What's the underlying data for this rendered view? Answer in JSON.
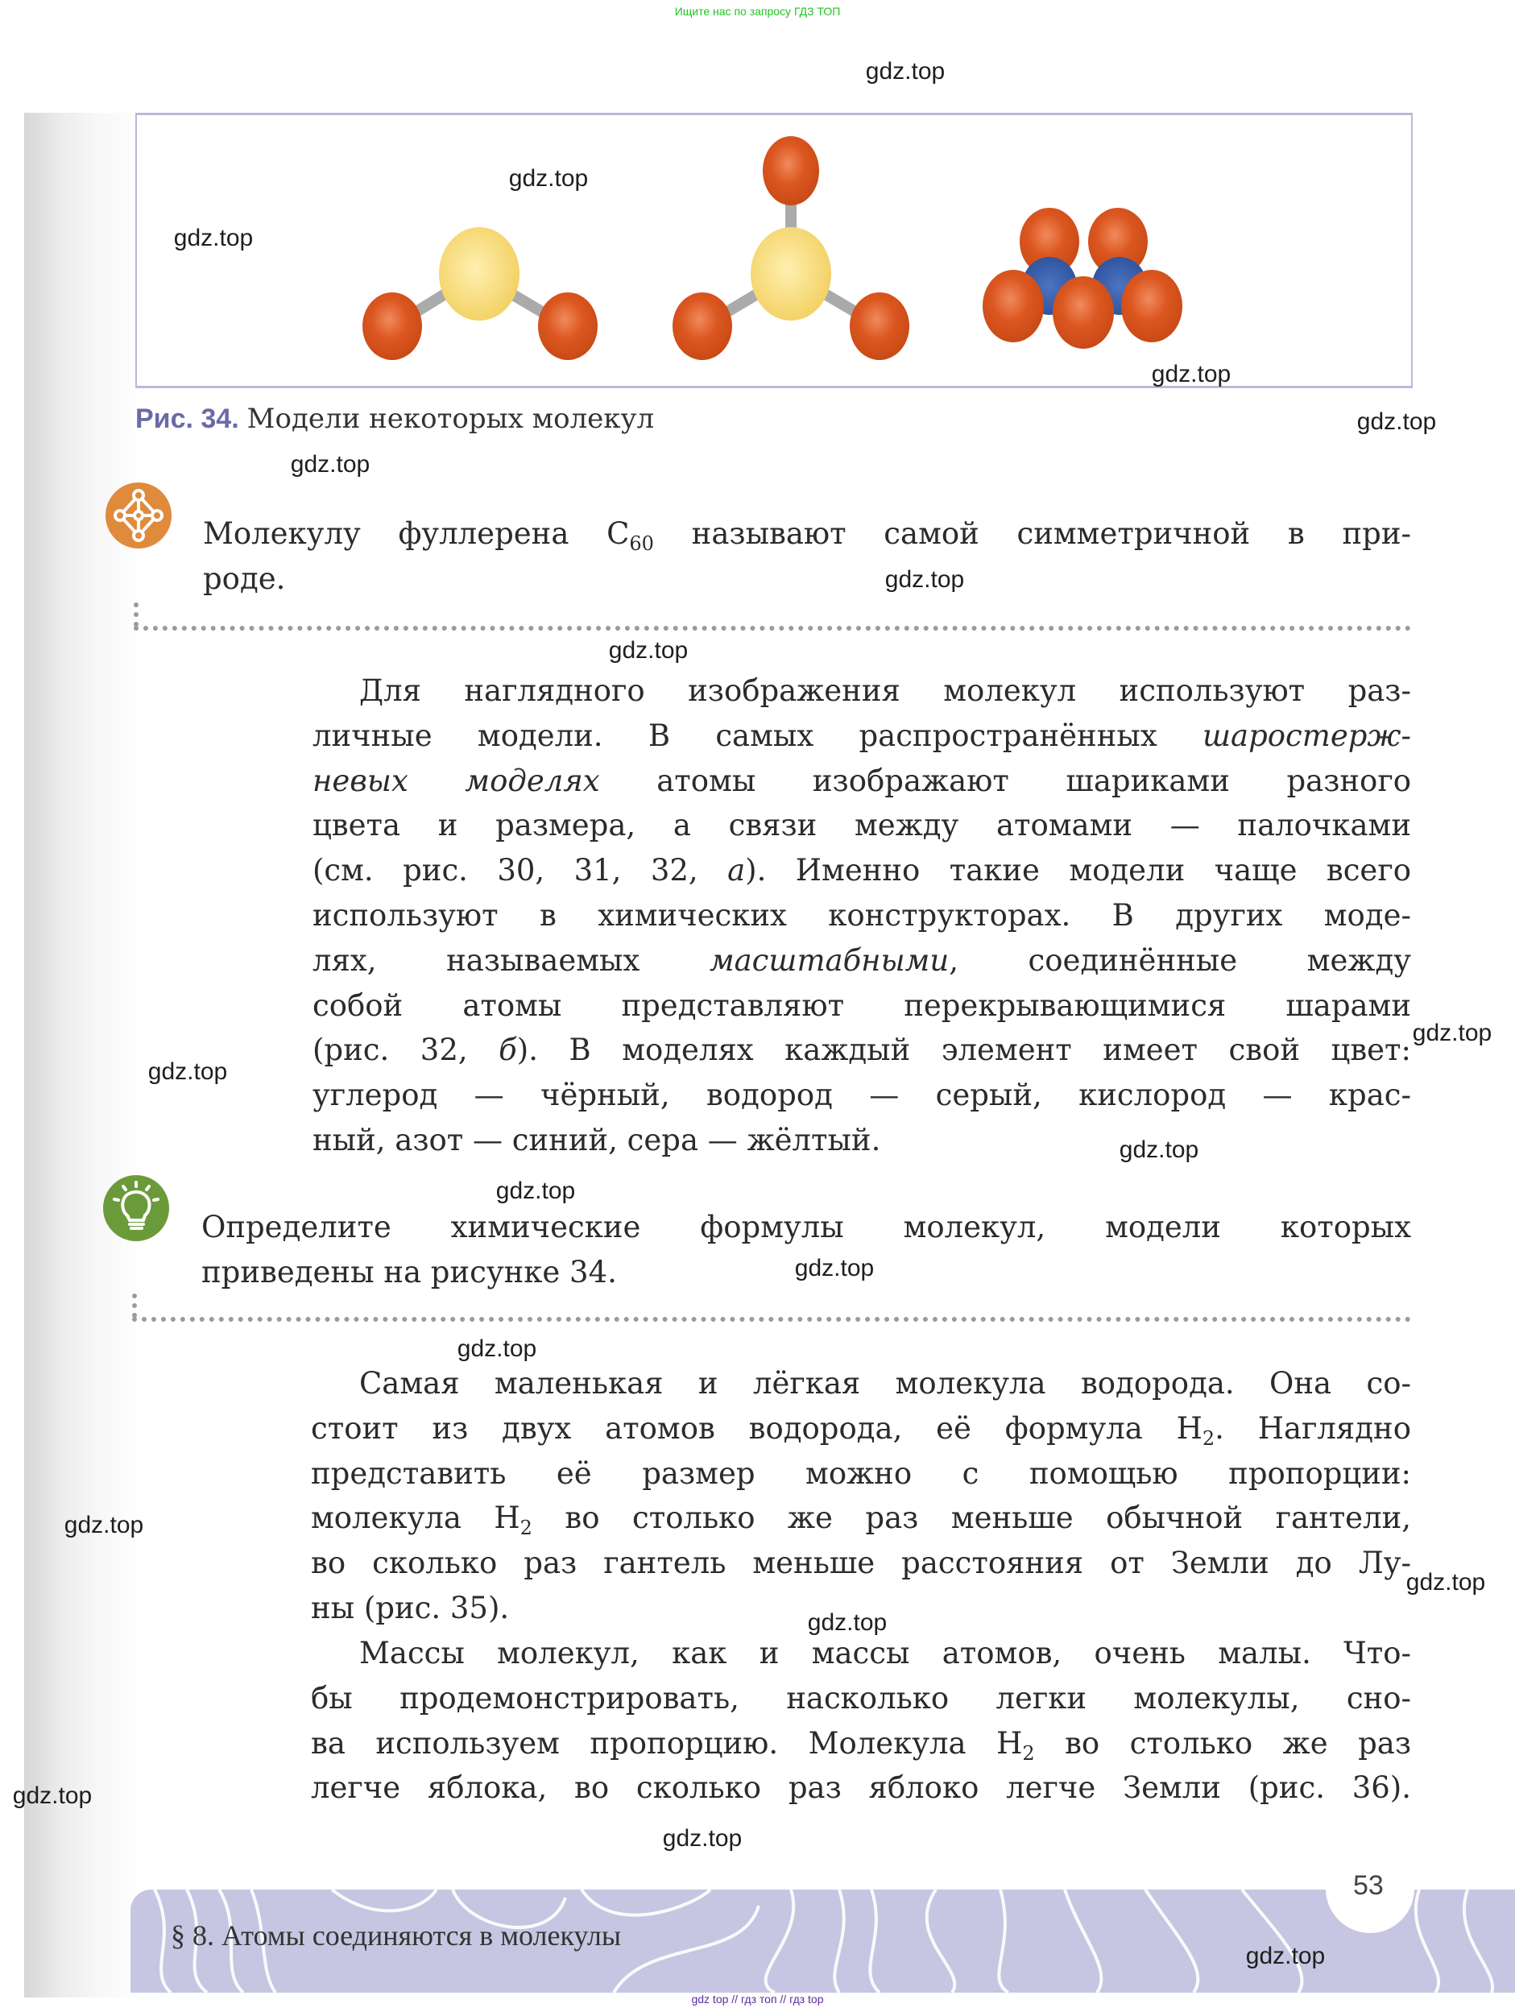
{
  "top_note": "Ищите нас по запросу ГДЗ ТОП",
  "figure": {
    "label": "Рис. 34.",
    "caption": "Модели некоторых молекул",
    "colors": {
      "oxygen": "#d9521f",
      "sulfur": "#f6d774",
      "nitrogen": "#2f57a6",
      "frame": "#b9b9d9"
    }
  },
  "fact": {
    "icon": "molecule-icon",
    "color": "#e08a3c",
    "lines": [
      [
        {
          "t": "Молекулу фуллерена C"
        },
        {
          "t": "60",
          "sub": true
        },
        {
          "t": " называют самой симметричной в при-"
        }
      ],
      [
        {
          "t": "роде."
        }
      ]
    ]
  },
  "paragraph1": [
    [
      {
        "t": "Для наглядного изображения молекул используют раз-"
      }
    ],
    [
      {
        "t": "личные модели. В самых распространённых "
      },
      {
        "t": "шаростерж-",
        "i": true
      }
    ],
    [
      {
        "t": "невых моделях",
        "i": true
      },
      {
        "t": " атомы изображают шариками разного"
      }
    ],
    [
      {
        "t": "цвета и размера, а связи между атомами — палочками"
      }
    ],
    [
      {
        "t": "(см. рис. 30, 31, 32, "
      },
      {
        "t": "а",
        "i": true
      },
      {
        "t": "). Именно такие модели чаще всего"
      }
    ],
    [
      {
        "t": "используют в химических конструкторах. В других моде-"
      }
    ],
    [
      {
        "t": "лях, называемых "
      },
      {
        "t": "масштабными",
        "i": true
      },
      {
        "t": ", соединённые между"
      }
    ],
    [
      {
        "t": "собой атомы представляют перекрывающимися шарами"
      }
    ],
    [
      {
        "t": "(рис. 32, "
      },
      {
        "t": "б",
        "i": true
      },
      {
        "t": "). В моделях каждый элемент имеет свой цвет:"
      }
    ],
    [
      {
        "t": "углерод — чёрный, водород — серый, кислород — крас-"
      }
    ],
    [
      {
        "t": "ный, азот — синий, сера — жёлтый."
      }
    ]
  ],
  "task": {
    "icon": "lightbulb-icon",
    "color": "#6a9a3a",
    "lines": [
      [
        {
          "t": "Определите химические формулы молекул, модели которых"
        }
      ],
      [
        {
          "t": "приведены на рисунке 34."
        }
      ]
    ]
  },
  "paragraph2": [
    [
      {
        "t": "Самая маленькая и лёгкая молекула водорода. Она со-"
      }
    ],
    [
      {
        "t": "стоит из двух атомов водорода, её формула H"
      },
      {
        "t": "2",
        "sub": true
      },
      {
        "t": ". Наглядно"
      }
    ],
    [
      {
        "t": "представить её размер можно с помощью пропорции:"
      }
    ],
    [
      {
        "t": "молекула H"
      },
      {
        "t": "2",
        "sub": true
      },
      {
        "t": " во столько же раз меньше обычной гантели,"
      }
    ],
    [
      {
        "t": "во сколько раз гантель меньше расстояния от Земли до Лу-"
      }
    ],
    [
      {
        "t": "ны (рис. 35)."
      }
    ]
  ],
  "paragraph3": [
    [
      {
        "t": "Массы молекул, как и массы атомов, очень малы. Что-"
      }
    ],
    [
      {
        "t": "бы продемонстрировать, насколько легки молекулы, сно-"
      }
    ],
    [
      {
        "t": "ва используем пропорцию. Молекула H"
      },
      {
        "t": "2",
        "sub": true
      },
      {
        "t": " во столько же раз"
      }
    ],
    [
      {
        "t": "легче яблока, во сколько раз яблоко легче Земли (рис. 36)."
      }
    ]
  ],
  "footer": {
    "page_number": "53",
    "section_title": "§ 8. Атомы соединяются в молекулы",
    "band_color": "#c6c6e2"
  },
  "watermark": "gdz.top",
  "bottom_note": "gdz top // гдз топ // гдз top"
}
